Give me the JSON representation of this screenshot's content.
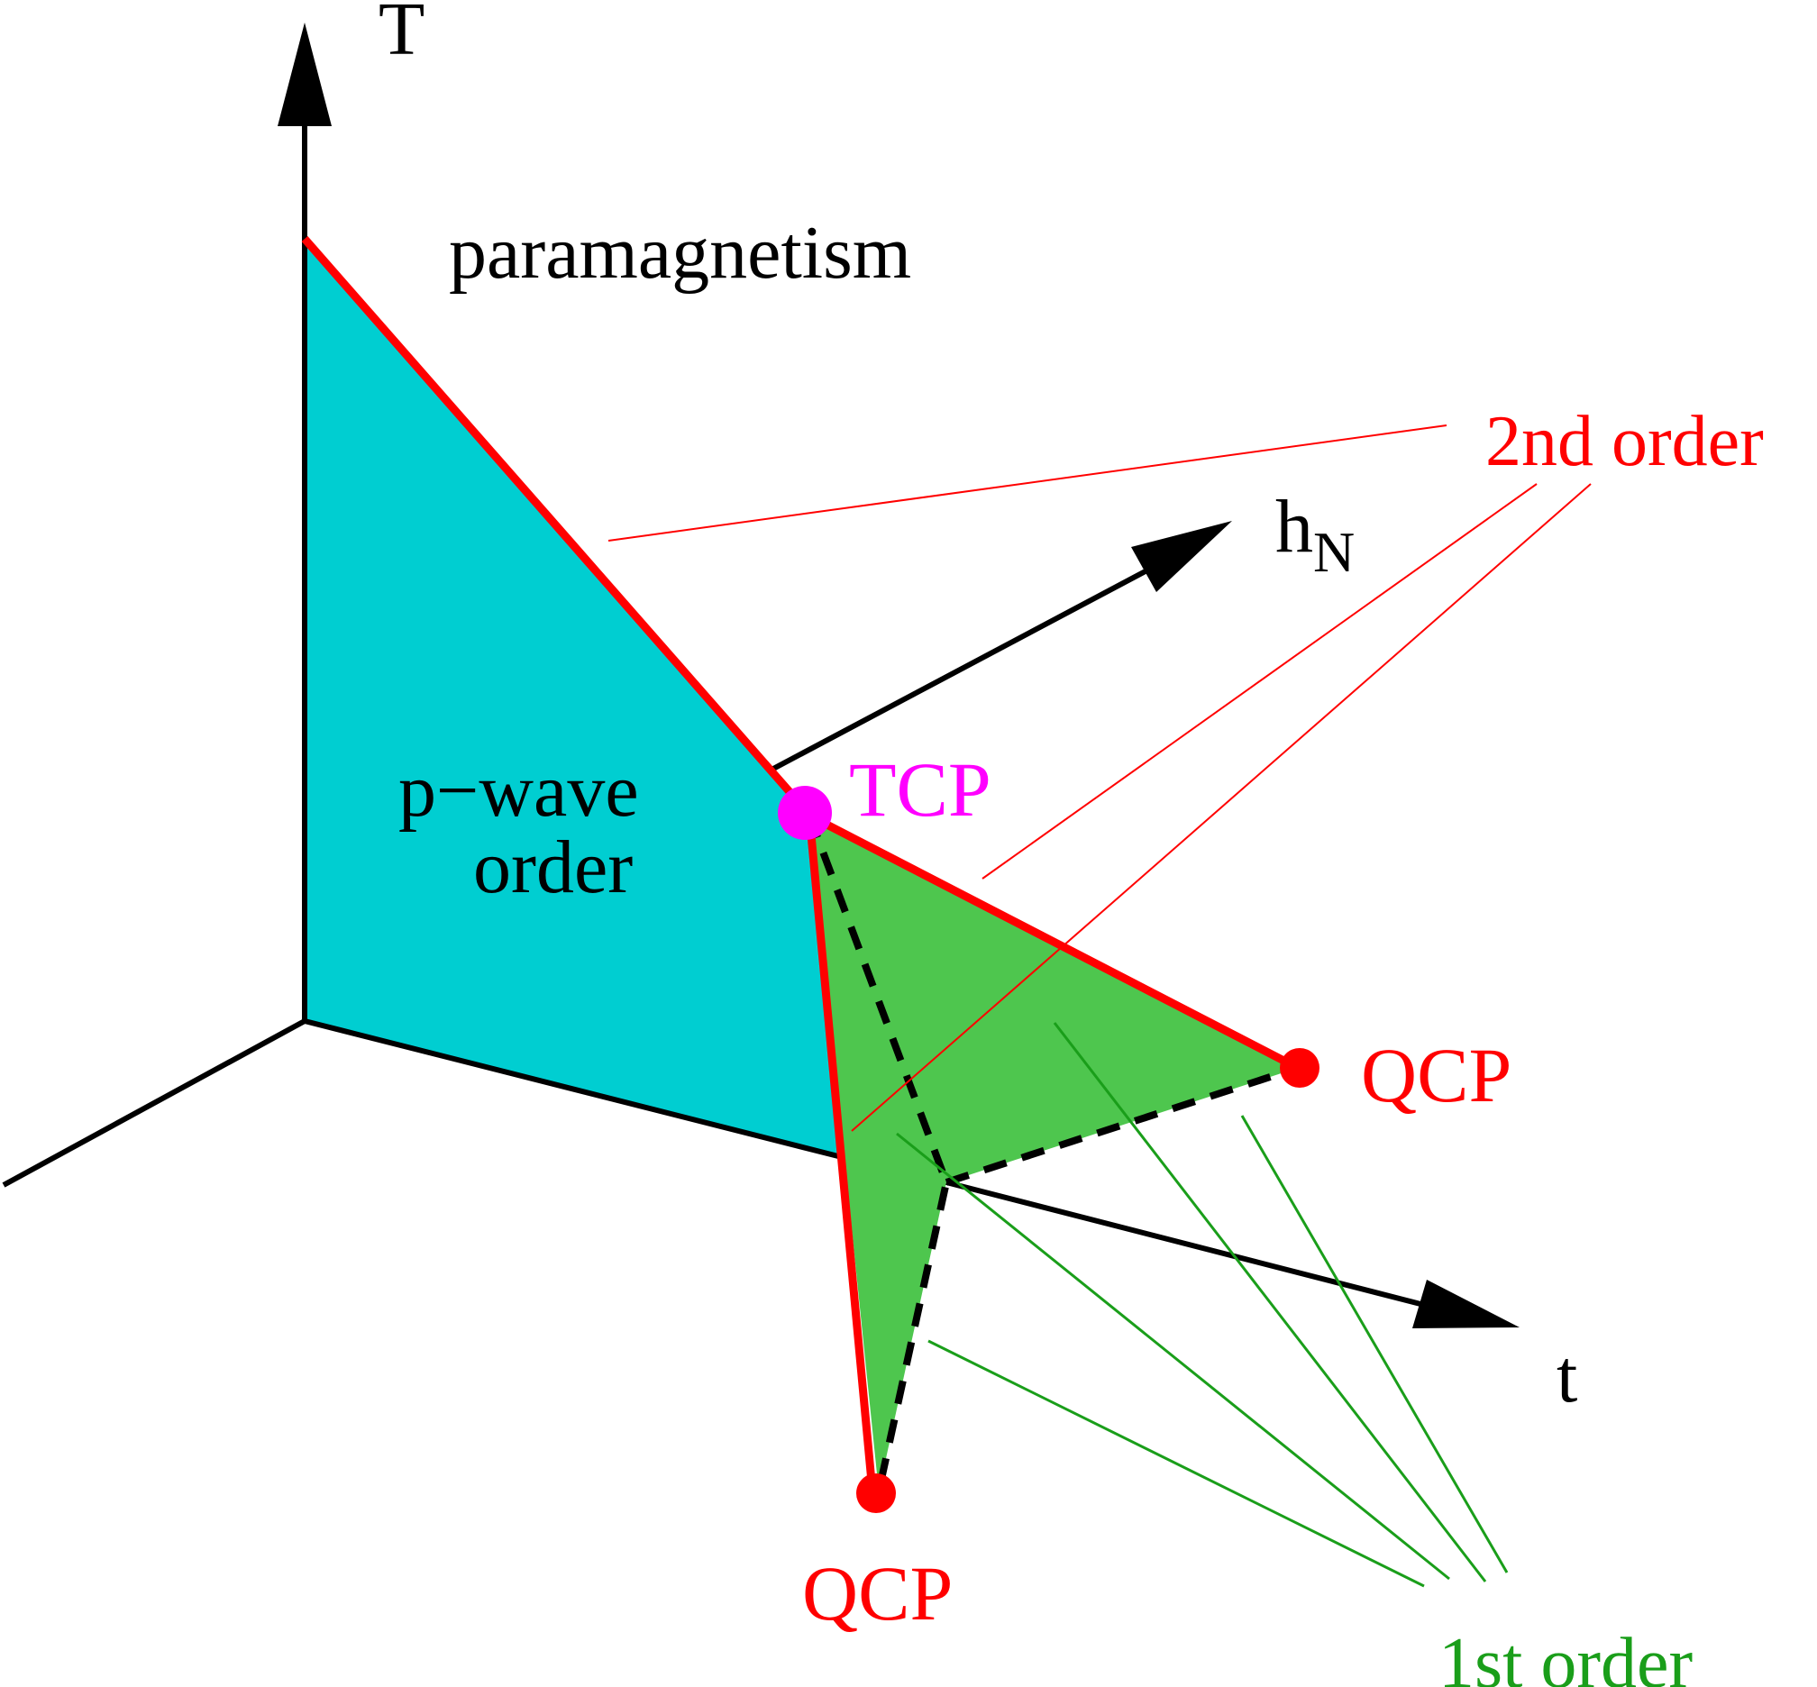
{
  "axes": {
    "T": "T",
    "hN_main": "h",
    "hN_sub": "N",
    "t": "t"
  },
  "regions": {
    "paramagnetism": "paramagnetism",
    "pwave_line1": "p−wave",
    "pwave_line2": "order"
  },
  "points": {
    "tcp": "TCP",
    "qcp_right": "QCP",
    "qcp_bottom": "QCP"
  },
  "callouts": {
    "second_order": "2nd order",
    "first_order": "1st order"
  },
  "colors": {
    "pwave_fill": "#00CED1",
    "first_order_fill": "#4EC64E",
    "second_order_line": "#FF0000",
    "first_order_leader": "#1A9E1A",
    "tcp": "#FF00FF",
    "qcp": "#FF0000",
    "axis": "#000000"
  }
}
